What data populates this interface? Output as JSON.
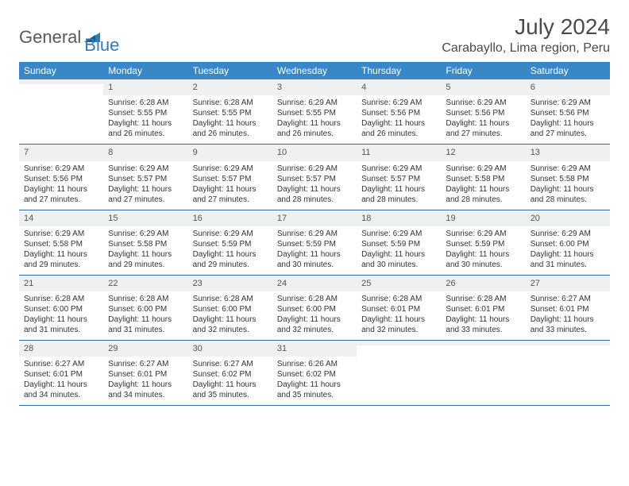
{
  "logo": {
    "part1": "General",
    "part2": "Blue"
  },
  "title": "July 2024",
  "location": "Carabayllo, Lima region, Peru",
  "colors": {
    "header_bg": "#3a87c8",
    "header_text": "#ffffff",
    "daynum_bg": "#eef0f1",
    "week_border": "#2f6ea5",
    "text": "#333333",
    "title_text": "#4a4a4a",
    "logo_gray": "#5a5a5a",
    "logo_blue": "#2f7bbf"
  },
  "day_names": [
    "Sunday",
    "Monday",
    "Tuesday",
    "Wednesday",
    "Thursday",
    "Friday",
    "Saturday"
  ],
  "weeks": [
    [
      {
        "date": "",
        "sunrise": "",
        "sunset": "",
        "daylight": ""
      },
      {
        "date": "1",
        "sunrise": "Sunrise: 6:28 AM",
        "sunset": "Sunset: 5:55 PM",
        "daylight": "Daylight: 11 hours and 26 minutes."
      },
      {
        "date": "2",
        "sunrise": "Sunrise: 6:28 AM",
        "sunset": "Sunset: 5:55 PM",
        "daylight": "Daylight: 11 hours and 26 minutes."
      },
      {
        "date": "3",
        "sunrise": "Sunrise: 6:29 AM",
        "sunset": "Sunset: 5:55 PM",
        "daylight": "Daylight: 11 hours and 26 minutes."
      },
      {
        "date": "4",
        "sunrise": "Sunrise: 6:29 AM",
        "sunset": "Sunset: 5:56 PM",
        "daylight": "Daylight: 11 hours and 26 minutes."
      },
      {
        "date": "5",
        "sunrise": "Sunrise: 6:29 AM",
        "sunset": "Sunset: 5:56 PM",
        "daylight": "Daylight: 11 hours and 27 minutes."
      },
      {
        "date": "6",
        "sunrise": "Sunrise: 6:29 AM",
        "sunset": "Sunset: 5:56 PM",
        "daylight": "Daylight: 11 hours and 27 minutes."
      }
    ],
    [
      {
        "date": "7",
        "sunrise": "Sunrise: 6:29 AM",
        "sunset": "Sunset: 5:56 PM",
        "daylight": "Daylight: 11 hours and 27 minutes."
      },
      {
        "date": "8",
        "sunrise": "Sunrise: 6:29 AM",
        "sunset": "Sunset: 5:57 PM",
        "daylight": "Daylight: 11 hours and 27 minutes."
      },
      {
        "date": "9",
        "sunrise": "Sunrise: 6:29 AM",
        "sunset": "Sunset: 5:57 PM",
        "daylight": "Daylight: 11 hours and 27 minutes."
      },
      {
        "date": "10",
        "sunrise": "Sunrise: 6:29 AM",
        "sunset": "Sunset: 5:57 PM",
        "daylight": "Daylight: 11 hours and 28 minutes."
      },
      {
        "date": "11",
        "sunrise": "Sunrise: 6:29 AM",
        "sunset": "Sunset: 5:57 PM",
        "daylight": "Daylight: 11 hours and 28 minutes."
      },
      {
        "date": "12",
        "sunrise": "Sunrise: 6:29 AM",
        "sunset": "Sunset: 5:58 PM",
        "daylight": "Daylight: 11 hours and 28 minutes."
      },
      {
        "date": "13",
        "sunrise": "Sunrise: 6:29 AM",
        "sunset": "Sunset: 5:58 PM",
        "daylight": "Daylight: 11 hours and 28 minutes."
      }
    ],
    [
      {
        "date": "14",
        "sunrise": "Sunrise: 6:29 AM",
        "sunset": "Sunset: 5:58 PM",
        "daylight": "Daylight: 11 hours and 29 minutes."
      },
      {
        "date": "15",
        "sunrise": "Sunrise: 6:29 AM",
        "sunset": "Sunset: 5:58 PM",
        "daylight": "Daylight: 11 hours and 29 minutes."
      },
      {
        "date": "16",
        "sunrise": "Sunrise: 6:29 AM",
        "sunset": "Sunset: 5:59 PM",
        "daylight": "Daylight: 11 hours and 29 minutes."
      },
      {
        "date": "17",
        "sunrise": "Sunrise: 6:29 AM",
        "sunset": "Sunset: 5:59 PM",
        "daylight": "Daylight: 11 hours and 30 minutes."
      },
      {
        "date": "18",
        "sunrise": "Sunrise: 6:29 AM",
        "sunset": "Sunset: 5:59 PM",
        "daylight": "Daylight: 11 hours and 30 minutes."
      },
      {
        "date": "19",
        "sunrise": "Sunrise: 6:29 AM",
        "sunset": "Sunset: 5:59 PM",
        "daylight": "Daylight: 11 hours and 30 minutes."
      },
      {
        "date": "20",
        "sunrise": "Sunrise: 6:29 AM",
        "sunset": "Sunset: 6:00 PM",
        "daylight": "Daylight: 11 hours and 31 minutes."
      }
    ],
    [
      {
        "date": "21",
        "sunrise": "Sunrise: 6:28 AM",
        "sunset": "Sunset: 6:00 PM",
        "daylight": "Daylight: 11 hours and 31 minutes."
      },
      {
        "date": "22",
        "sunrise": "Sunrise: 6:28 AM",
        "sunset": "Sunset: 6:00 PM",
        "daylight": "Daylight: 11 hours and 31 minutes."
      },
      {
        "date": "23",
        "sunrise": "Sunrise: 6:28 AM",
        "sunset": "Sunset: 6:00 PM",
        "daylight": "Daylight: 11 hours and 32 minutes."
      },
      {
        "date": "24",
        "sunrise": "Sunrise: 6:28 AM",
        "sunset": "Sunset: 6:00 PM",
        "daylight": "Daylight: 11 hours and 32 minutes."
      },
      {
        "date": "25",
        "sunrise": "Sunrise: 6:28 AM",
        "sunset": "Sunset: 6:01 PM",
        "daylight": "Daylight: 11 hours and 32 minutes."
      },
      {
        "date": "26",
        "sunrise": "Sunrise: 6:28 AM",
        "sunset": "Sunset: 6:01 PM",
        "daylight": "Daylight: 11 hours and 33 minutes."
      },
      {
        "date": "27",
        "sunrise": "Sunrise: 6:27 AM",
        "sunset": "Sunset: 6:01 PM",
        "daylight": "Daylight: 11 hours and 33 minutes."
      }
    ],
    [
      {
        "date": "28",
        "sunrise": "Sunrise: 6:27 AM",
        "sunset": "Sunset: 6:01 PM",
        "daylight": "Daylight: 11 hours and 34 minutes."
      },
      {
        "date": "29",
        "sunrise": "Sunrise: 6:27 AM",
        "sunset": "Sunset: 6:01 PM",
        "daylight": "Daylight: 11 hours and 34 minutes."
      },
      {
        "date": "30",
        "sunrise": "Sunrise: 6:27 AM",
        "sunset": "Sunset: 6:02 PM",
        "daylight": "Daylight: 11 hours and 35 minutes."
      },
      {
        "date": "31",
        "sunrise": "Sunrise: 6:26 AM",
        "sunset": "Sunset: 6:02 PM",
        "daylight": "Daylight: 11 hours and 35 minutes."
      },
      {
        "date": "",
        "sunrise": "",
        "sunset": "",
        "daylight": ""
      },
      {
        "date": "",
        "sunrise": "",
        "sunset": "",
        "daylight": ""
      },
      {
        "date": "",
        "sunrise": "",
        "sunset": "",
        "daylight": ""
      }
    ]
  ]
}
